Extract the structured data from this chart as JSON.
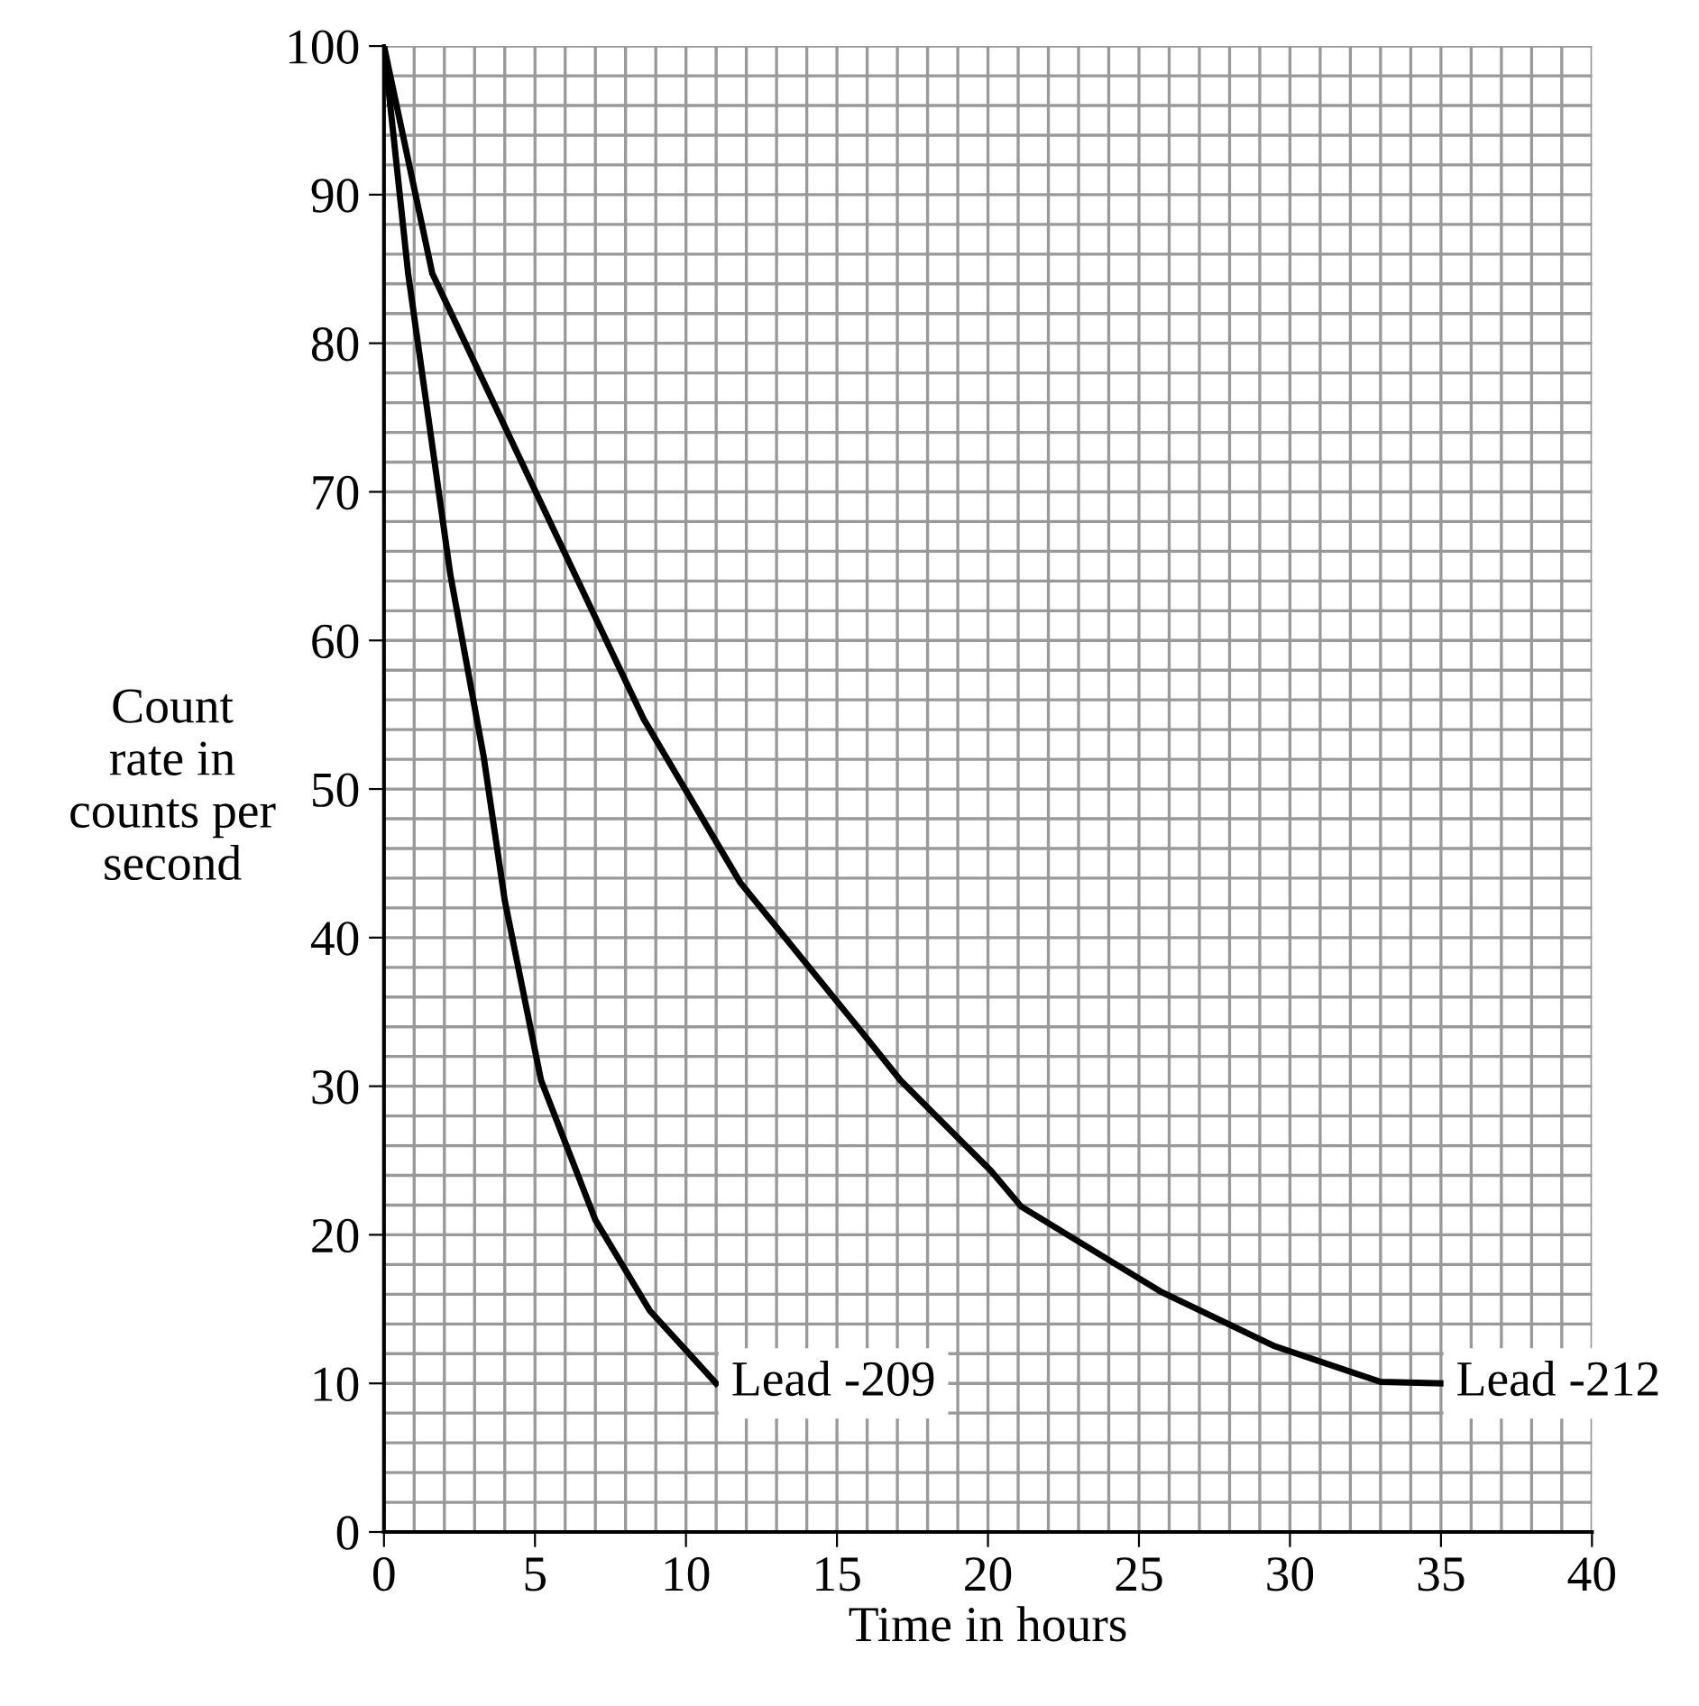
{
  "chart_data": {
    "type": "line",
    "xlabel": "Time in hours",
    "ylabel": "Count\nrate in\ncounts per\nsecond",
    "series": [
      {
        "name": "Lead -209",
        "color": "#000000",
        "x": [
          0,
          0.8,
          2.2,
          3.3,
          4.0,
          5.2,
          7.0,
          8.8,
          11
        ],
        "values": [
          100,
          84.7,
          64.4,
          52.2,
          42.5,
          30.4,
          21.0,
          14.9,
          10
        ]
      },
      {
        "name": "Lead -212",
        "color": "#000000",
        "x": [
          0,
          1.6,
          5.0,
          8.6,
          11.8,
          15.8,
          17.1,
          20.1,
          21.1,
          25.7,
          29.5,
          33,
          35
        ],
        "values": [
          100,
          84.7,
          70.1,
          54.7,
          43.7,
          33.7,
          30.4,
          24.3,
          21.9,
          16.2,
          12.5,
          10.1,
          10
        ]
      }
    ],
    "xlim": [
      0,
      40
    ],
    "ylim": [
      0,
      100
    ],
    "xticks": [
      0,
      5,
      10,
      15,
      20,
      25,
      30,
      35,
      40
    ],
    "yticks": [
      0,
      10,
      20,
      30,
      40,
      50,
      60,
      70,
      80,
      90,
      100
    ],
    "grid": true,
    "legend": false,
    "marker": "none",
    "line_style": "solid"
  }
}
